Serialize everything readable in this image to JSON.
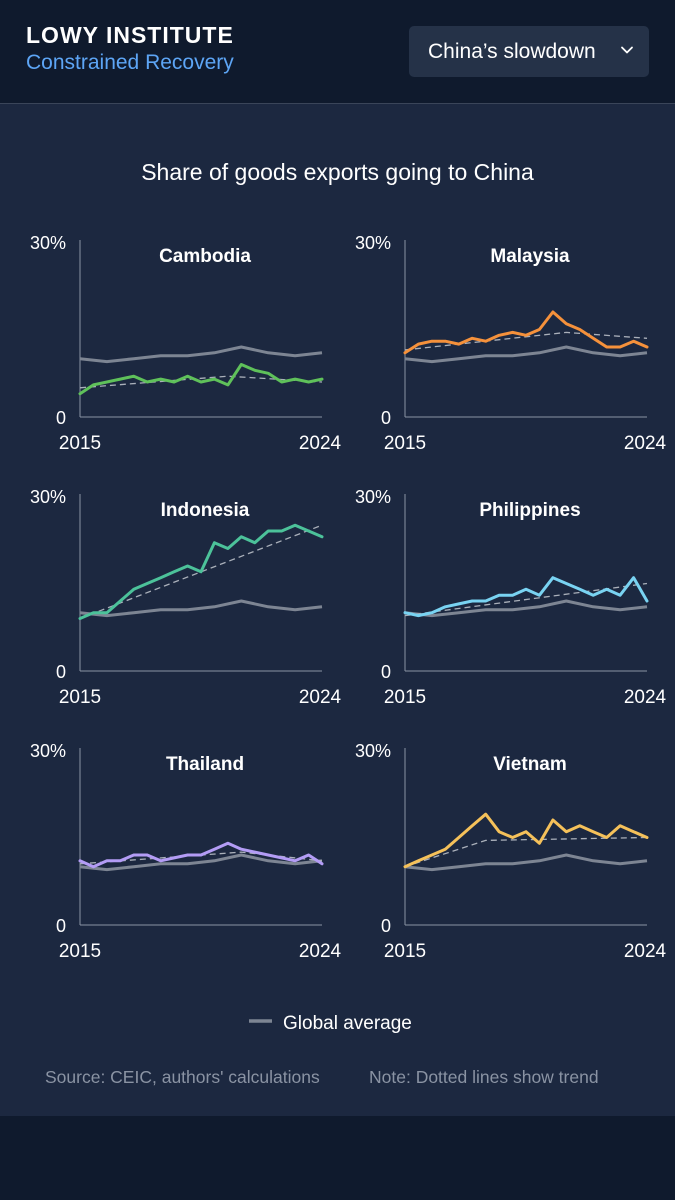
{
  "header": {
    "brand": "LOWY INSTITUTE",
    "subtitle": "Constrained Recovery",
    "dropdown_value": "China’s slowdown",
    "dropdown_icon": "chevron-down-icon"
  },
  "colors": {
    "background": "#1c2840",
    "header_bg": "#0f1a2d",
    "accent": "#5da5f5",
    "global_average": "#7d8593",
    "trend_grey": "#aab0ba"
  },
  "chart_data": {
    "type": "line",
    "title": "Share of goods exports going to China",
    "y_unit": "%",
    "ylim": [
      0,
      30
    ],
    "y_tick_labels": [
      "0",
      "30%"
    ],
    "xlim": [
      2015,
      2024
    ],
    "x_tick_labels": [
      "2015",
      "2024"
    ],
    "legend": {
      "label": "Global average",
      "placement": "bottom-center"
    },
    "source": "Source: CEIC, authors' calculations",
    "note": "Note: Dotted lines show trend",
    "global_average": {
      "name": "Global average",
      "x": [
        2015,
        2016,
        2017,
        2018,
        2019,
        2020,
        2021,
        2022,
        2023,
        2024
      ],
      "values": [
        10,
        9.5,
        10,
        10.5,
        10.5,
        11,
        12,
        11,
        10.5,
        11
      ]
    },
    "panels": [
      {
        "country": "Cambodia",
        "color": "#5fc15a",
        "x": [
          2015,
          2015.5,
          2016,
          2016.5,
          2017,
          2017.5,
          2018,
          2018.5,
          2019,
          2019.5,
          2020,
          2020.5,
          2021,
          2021.5,
          2022,
          2022.5,
          2023,
          2023.5,
          2024
        ],
        "values": [
          4,
          5.5,
          6,
          6.5,
          7,
          6,
          6.5,
          6,
          7,
          6,
          6.5,
          5.5,
          9,
          8,
          7.5,
          6,
          6.5,
          6,
          6.5
        ],
        "trend_x": [
          2015,
          2020.5,
          2024
        ],
        "trend_values": [
          5,
          7,
          6
        ]
      },
      {
        "country": "Malaysia",
        "color": "#f5913b",
        "x": [
          2015,
          2015.5,
          2016,
          2016.5,
          2017,
          2017.5,
          2018,
          2018.5,
          2019,
          2019.5,
          2020,
          2020.5,
          2021,
          2021.5,
          2022,
          2022.5,
          2023,
          2023.5,
          2024
        ],
        "values": [
          11,
          12.5,
          13,
          13,
          12.5,
          13.5,
          13,
          14,
          14.5,
          14,
          15,
          18,
          16,
          15,
          13.5,
          12,
          12,
          13,
          12
        ],
        "trend_x": [
          2015,
          2021,
          2024
        ],
        "trend_values": [
          11.5,
          14.5,
          13.5
        ]
      },
      {
        "country": "Indonesia",
        "color": "#4cc29a",
        "x": [
          2015,
          2015.5,
          2016,
          2016.5,
          2017,
          2017.5,
          2018,
          2018.5,
          2019,
          2019.5,
          2020,
          2020.5,
          2021,
          2021.5,
          2022,
          2022.5,
          2023,
          2023.5,
          2024
        ],
        "values": [
          9,
          10,
          10,
          12,
          14,
          15,
          16,
          17,
          18,
          17,
          22,
          21,
          23,
          22,
          24,
          24,
          25,
          24,
          23
        ],
        "trend_x": [
          2015,
          2024
        ],
        "trend_values": [
          9,
          25
        ]
      },
      {
        "country": "Philippines",
        "color": "#79d3f2",
        "x": [
          2015,
          2015.5,
          2016,
          2016.5,
          2017,
          2017.5,
          2018,
          2018.5,
          2019,
          2019.5,
          2020,
          2020.5,
          2021,
          2021.5,
          2022,
          2022.5,
          2023,
          2023.5,
          2024
        ],
        "values": [
          10,
          9.5,
          10,
          11,
          11.5,
          12,
          12,
          13,
          13,
          14,
          13,
          16,
          15,
          14,
          13,
          14,
          13,
          16,
          12
        ],
        "trend_x": [
          2015,
          2024
        ],
        "trend_values": [
          9.5,
          15
        ]
      },
      {
        "country": "Thailand",
        "color": "#b39cf5",
        "x": [
          2015,
          2015.5,
          2016,
          2016.5,
          2017,
          2017.5,
          2018,
          2018.5,
          2019,
          2019.5,
          2020,
          2020.5,
          2021,
          2021.5,
          2022,
          2022.5,
          2023,
          2023.5,
          2024
        ],
        "values": [
          11,
          10,
          11,
          11,
          12,
          12,
          11,
          11.5,
          12,
          12,
          13,
          14,
          13,
          12.5,
          12,
          11.5,
          11,
          12,
          10.5
        ],
        "trend_x": [
          2015,
          2021,
          2024
        ],
        "trend_values": [
          10.5,
          12.5,
          11
        ]
      },
      {
        "country": "Vietnam",
        "color": "#f5c15a",
        "x": [
          2015,
          2015.5,
          2016,
          2016.5,
          2017,
          2017.5,
          2018,
          2018.5,
          2019,
          2019.5,
          2020,
          2020.5,
          2021,
          2021.5,
          2022,
          2022.5,
          2023,
          2023.5,
          2024
        ],
        "values": [
          10,
          11,
          12,
          13,
          15,
          17,
          19,
          16,
          15,
          16,
          14,
          18,
          16,
          17,
          16,
          15,
          17,
          16,
          15
        ],
        "trend_x": [
          2015,
          2018,
          2024
        ],
        "trend_values": [
          10,
          14.5,
          15
        ]
      }
    ]
  }
}
